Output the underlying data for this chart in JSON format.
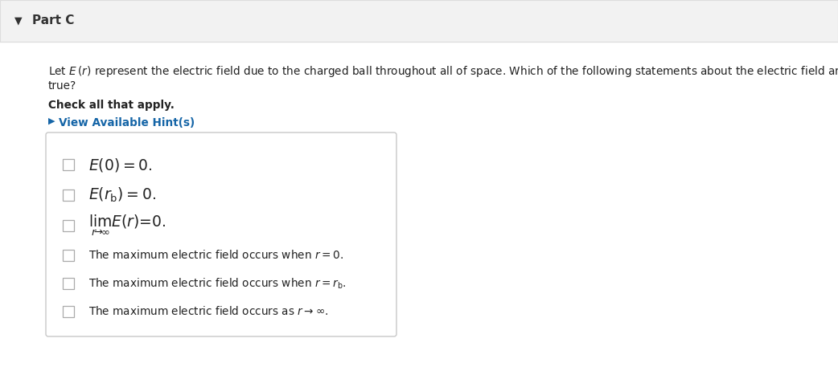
{
  "white_bg": "#ffffff",
  "header_text": "Part C",
  "header_color": "#333333",
  "header_bar_color": "#f2f2f2",
  "header_bar_border": "#dddddd",
  "body_text_line1": "Let $E\\,(r)$ represent the electric field due to the charged ball throughout all of space. Which of the following statements about the electric field are",
  "body_text_line2": "true?",
  "check_label": "Check all that apply.",
  "hint_label": "View Available Hint(s)",
  "hint_color": "#1565a7",
  "hint_triangle_color": "#1565a7",
  "box_edge_color": "#c8c8c8",
  "box_fill": "#ffffff",
  "checkbox_options_math": [
    "$E(0) = 0.$",
    "$E(r_\\mathrm{b}) = 0.$",
    "$\\lim_{r\\!\\to\\!\\infty} E(r) = 0.$"
  ],
  "checkbox_options_text": [
    "The maximum electric field occurs when $r = 0.$",
    "The maximum electric field occurs when $r = r_\\mathrm{b}.$",
    "The maximum electric field occurs as $r \\to \\infty.$"
  ],
  "text_color": "#222222",
  "cb_border_color": "#aaaaaa",
  "body_fontsize": 9.8,
  "math_fontsize": 13.5,
  "mixed_fontsize": 9.8,
  "check_fontsize": 9.8,
  "hint_fontsize": 9.8,
  "header_fontsize": 11
}
